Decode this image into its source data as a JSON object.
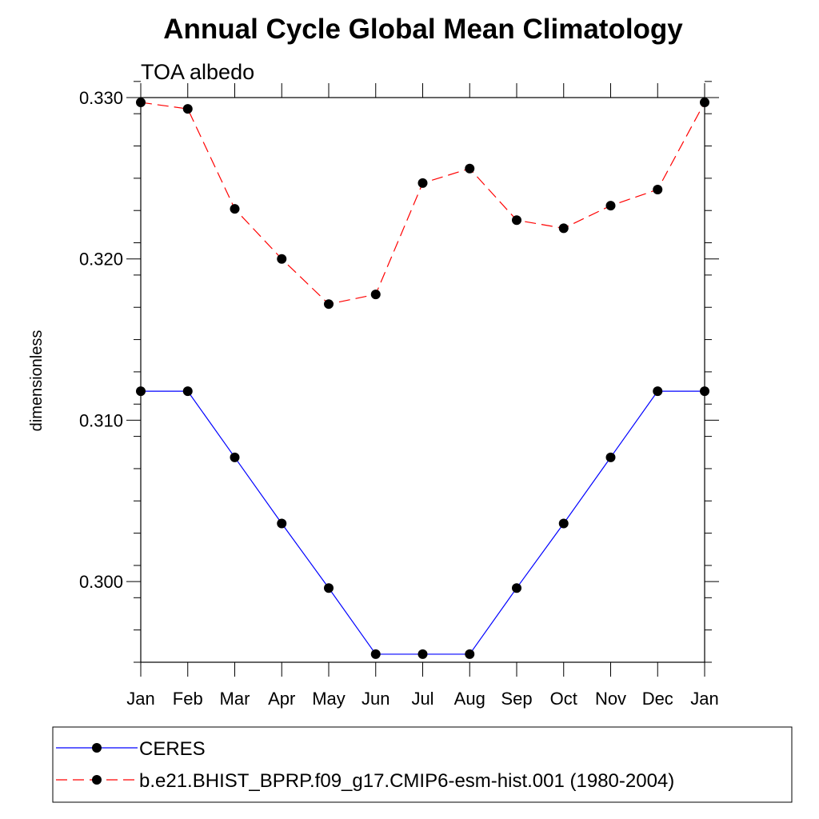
{
  "chart_data": {
    "type": "line",
    "title": "Annual Cycle Global Mean Climatology",
    "subtitle": "TOA albedo",
    "xlabel": "",
    "ylabel": "dimensionless",
    "categories": [
      "Jan",
      "Feb",
      "Mar",
      "Apr",
      "May",
      "Jun",
      "Jul",
      "Aug",
      "Sep",
      "Oct",
      "Nov",
      "Dec",
      "Jan"
    ],
    "ylim": [
      0.295,
      0.33
    ],
    "yticks": [
      0.3,
      0.31,
      0.32,
      0.33
    ],
    "ytick_labels": [
      "0.300",
      "0.310",
      "0.320",
      "0.330"
    ],
    "yminor_step": 0.002,
    "grid": false,
    "legend_position": "bottom",
    "series": [
      {
        "name": "CERES",
        "color": "#0000ff",
        "dash": "solid",
        "marker": "circle",
        "values": [
          0.3118,
          0.3118,
          0.3077,
          0.3036,
          0.2996,
          0.2955,
          0.2955,
          0.2955,
          0.2996,
          0.3036,
          0.3077,
          0.3118,
          0.3118
        ]
      },
      {
        "name": "b.e21.BHIST_BPRP.f09_g17.CMIP6-esm-hist.001 (1980-2004)",
        "color": "#ff0000",
        "dash": "dashed",
        "marker": "circle",
        "values": [
          0.3297,
          0.3293,
          0.3231,
          0.32,
          0.3172,
          0.3178,
          0.3247,
          0.3256,
          0.3224,
          0.3219,
          0.3233,
          0.3243,
          0.3297
        ]
      }
    ]
  }
}
